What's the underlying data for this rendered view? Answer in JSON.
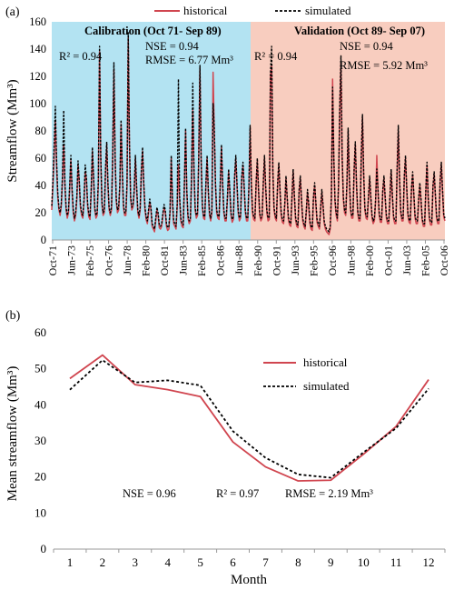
{
  "colors": {
    "historical": "#d0454f",
    "simulated": "#000000",
    "calibration_bg": "#b3e3f2",
    "validation_bg": "#f8cdbf"
  },
  "panel_a": {
    "panel_label": "(a)",
    "legend": [
      "historical",
      "simulated"
    ],
    "calibration_title": "Calibration (Oct 71- Sep 89)",
    "validation_title": "Validation (Oct 89- Sep 07)",
    "cal_r2": "R² = 0.94",
    "cal_nse": "NSE = 0.94",
    "cal_rmse": "RMSE = 6.77 Mm³",
    "val_r2": "R² = 0.94",
    "val_nse": "NSE = 0.94",
    "val_rmse": "5.92 Mm³",
    "val_rmse_prefix": "RMSE = "
  },
  "panel_b": {
    "panel_label": "(b)",
    "legend": [
      "historical",
      "simulated"
    ],
    "nse": "NSE = 0.96",
    "r2": "R² = 0.97",
    "rmse": "RMSE = 2.19 Mm³"
  },
  "chart_data": [
    {
      "type": "line",
      "ylabel": "Streamflow (Mm³)",
      "ylim": [
        0,
        160
      ],
      "yticks": [
        0,
        20,
        40,
        60,
        80,
        100,
        120,
        140,
        160
      ],
      "xticks": [
        "Oct-71",
        "Jun-73",
        "Feb-75",
        "Oct-76",
        "Jun-78",
        "Feb-80",
        "Oct-81",
        "Jun-83",
        "Feb-85",
        "Oct-86",
        "Jun-88",
        "Feb-90",
        "Oct-91",
        "Jun-93",
        "Feb-95",
        "Oct-96",
        "Jun-98",
        "Feb-00",
        "Oct-01",
        "Jun-03",
        "Feb-05",
        "Oct-06"
      ],
      "x_start": "1971-10",
      "x_end": "2007-09",
      "periods": [
        {
          "name": "Calibration (Oct 71- Sep 89)",
          "start": "1971-10",
          "end": "1989-09"
        },
        {
          "name": "Validation (Oct 89- Sep 07)",
          "start": "1989-10",
          "end": "2007-09"
        }
      ],
      "series": [
        {
          "name": "historical",
          "style": "solid",
          "values": [
            22,
            40,
            62,
            88,
            55,
            32,
            22,
            18,
            25,
            45,
            70,
            40,
            22,
            16,
            20,
            38,
            58,
            36,
            20,
            14,
            18,
            30,
            55,
            42,
            24,
            18,
            16,
            28,
            50,
            44,
            25,
            17,
            15,
            35,
            65,
            45,
            22,
            16,
            18,
            42,
            138,
            60,
            26,
            18,
            20,
            50,
            70,
            40,
            22,
            18,
            22,
            60,
            125,
            60,
            28,
            20,
            22,
            40,
            85,
            50,
            24,
            18,
            18,
            40,
            148,
            70,
            30,
            22,
            24,
            35,
            60,
            38,
            20,
            16,
            22,
            50,
            65,
            40,
            22,
            15,
            12,
            20,
            28,
            22,
            10,
            8,
            6,
            14,
            22,
            18,
            9,
            8,
            10,
            18,
            24,
            20,
            10,
            7,
            8,
            20,
            60,
            28,
            12,
            10,
            8,
            25,
            55,
            30,
            14,
            10,
            9,
            40,
            80,
            35,
            16,
            12,
            14,
            45,
            95,
            50,
            22,
            16,
            18,
            60,
            126,
            58,
            24,
            16,
            15,
            40,
            60,
            35,
            18,
            14,
            20,
            123,
            80,
            40,
            20,
            16,
            15,
            40,
            68,
            40,
            20,
            14,
            14,
            30,
            50,
            35,
            18,
            13,
            15,
            45,
            60,
            40,
            20,
            14,
            16,
            45,
            55,
            38,
            20,
            14,
            14,
            38,
            82,
            40,
            20,
            15,
            14,
            40,
            58,
            36,
            18,
            14,
            16,
            40,
            60,
            38,
            20,
            14,
            15,
            120,
            128,
            50,
            22,
            16,
            14,
            40,
            55,
            35,
            18,
            13,
            12,
            25,
            45,
            30,
            15,
            11,
            10,
            30,
            50,
            32,
            15,
            10,
            9,
            35,
            45,
            28,
            14,
            10,
            8,
            20,
            35,
            25,
            12,
            8,
            7,
            30,
            40,
            26,
            13,
            10,
            8,
            22,
            35,
            24,
            12,
            8,
            6,
            5,
            4,
            8,
            30,
            118,
            60,
            28,
            18,
            14,
            40,
            95,
            130,
            60,
            30,
            20,
            18,
            40,
            80,
            45,
            22,
            16,
            16,
            50,
            70,
            40,
            20,
            14,
            14,
            60,
            90,
            48,
            22,
            16,
            15,
            30,
            45,
            30,
            16,
            12,
            14,
            28,
            62,
            35,
            18,
            13,
            13,
            35,
            45,
            30,
            16,
            12,
            12,
            30,
            50,
            32,
            16,
            12,
            12,
            50,
            80,
            45,
            20,
            14,
            14,
            45,
            60,
            38,
            18,
            13,
            12,
            36,
            48,
            32,
            16,
            12,
            12,
            28,
            40,
            28,
            14,
            10,
            10,
            35,
            55,
            30,
            15,
            11,
            11,
            38,
            48,
            32,
            16,
            12,
            12,
            42,
            55,
            35,
            17,
            14
          ]
        },
        {
          "name": "simulated",
          "style": "dashed",
          "values": [
            25,
            44,
            70,
            98,
            60,
            35,
            24,
            20,
            27,
            48,
            95,
            42,
            24,
            18,
            22,
            40,
            62,
            38,
            22,
            16,
            20,
            32,
            58,
            44,
            26,
            20,
            18,
            30,
            55,
            46,
            27,
            19,
            17,
            37,
            68,
            47,
            24,
            18,
            20,
            45,
            142,
            62,
            28,
            20,
            22,
            52,
            72,
            42,
            24,
            20,
            24,
            62,
            130,
            62,
            30,
            22,
            24,
            42,
            88,
            52,
            26,
            20,
            20,
            42,
            152,
            72,
            32,
            24,
            26,
            37,
            62,
            40,
            22,
            18,
            24,
            52,
            68,
            42,
            24,
            17,
            14,
            22,
            30,
            24,
            12,
            10,
            8,
            16,
            24,
            20,
            11,
            10,
            12,
            20,
            26,
            22,
            12,
            9,
            10,
            22,
            62,
            30,
            14,
            12,
            10,
            27,
            118,
            32,
            16,
            12,
            11,
            42,
            82,
            37,
            18,
            14,
            16,
            47,
            115,
            52,
            24,
            18,
            20,
            62,
            128,
            60,
            26,
            18,
            17,
            42,
            62,
            37,
            20,
            16,
            22,
            100,
            82,
            42,
            22,
            18,
            17,
            42,
            70,
            42,
            22,
            16,
            16,
            32,
            52,
            37,
            20,
            15,
            17,
            47,
            62,
            42,
            22,
            16,
            18,
            47,
            57,
            40,
            22,
            16,
            16,
            40,
            84,
            42,
            22,
            17,
            16,
            42,
            60,
            38,
            20,
            16,
            18,
            42,
            62,
            40,
            22,
            16,
            17,
            122,
            142,
            52,
            24,
            18,
            16,
            42,
            57,
            37,
            20,
            15,
            14,
            27,
            47,
            32,
            17,
            13,
            12,
            32,
            52,
            34,
            17,
            12,
            11,
            37,
            47,
            30,
            16,
            12,
            10,
            22,
            37,
            27,
            14,
            10,
            9,
            32,
            42,
            28,
            15,
            12,
            10,
            24,
            37,
            26,
            14,
            10,
            8,
            7,
            6,
            10,
            32,
            112,
            62,
            30,
            20,
            16,
            42,
            98,
            135,
            62,
            32,
            22,
            20,
            42,
            82,
            47,
            24,
            18,
            18,
            52,
            72,
            42,
            22,
            16,
            16,
            62,
            92,
            50,
            24,
            18,
            17,
            32,
            47,
            32,
            18,
            14,
            16,
            30,
            52,
            37,
            20,
            15,
            15,
            37,
            47,
            32,
            18,
            14,
            14,
            32,
            52,
            34,
            18,
            14,
            14,
            52,
            84,
            47,
            22,
            16,
            16,
            47,
            62,
            40,
            20,
            15,
            14,
            38,
            50,
            34,
            18,
            14,
            14,
            30,
            42,
            30,
            16,
            12,
            12,
            37,
            57,
            32,
            17,
            13,
            13,
            40,
            50,
            34,
            18,
            14,
            14,
            44,
            57,
            37,
            19,
            16
          ]
        }
      ]
    },
    {
      "type": "line",
      "xlabel": "Month",
      "ylabel": "Mean streamflow (Mm³)",
      "ylim": [
        0,
        60
      ],
      "yticks": [
        0,
        10,
        20,
        30,
        40,
        50,
        60
      ],
      "x": [
        1,
        2,
        3,
        4,
        5,
        6,
        7,
        8,
        9,
        10,
        11,
        12
      ],
      "series": [
        {
          "name": "historical",
          "style": "solid",
          "values": [
            47.3,
            53.8,
            45.6,
            44.2,
            42.3,
            29.7,
            22.8,
            18.9,
            19.1,
            26.3,
            34.0,
            47.0
          ]
        },
        {
          "name": "simulated",
          "style": "dashed",
          "values": [
            44.2,
            52.4,
            46.2,
            46.8,
            45.4,
            32.7,
            25.3,
            20.7,
            19.8,
            26.8,
            33.5,
            44.5
          ]
        }
      ]
    }
  ]
}
